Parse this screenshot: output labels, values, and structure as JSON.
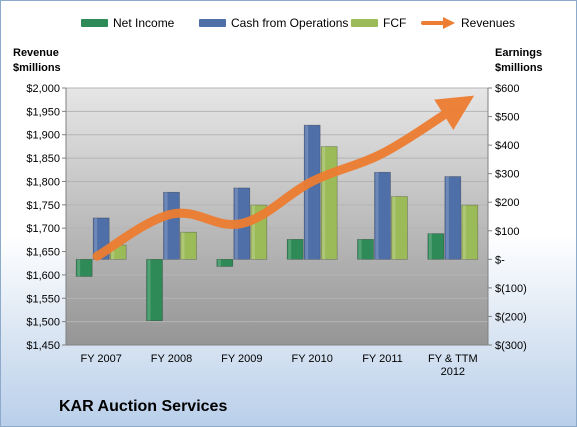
{
  "company": "KAR Auction Services",
  "legend": {
    "net_income": "Net Income",
    "cfo": "Cash from Operations",
    "fcf": "FCF",
    "revenues": "Revenues"
  },
  "left_axis_title": {
    "line1": "Revenue",
    "line2": "$millions"
  },
  "right_axis_title": {
    "line1": "Earnings",
    "line2": "$millions"
  },
  "colors": {
    "net_income": "#2e8b57",
    "cfo": "#4f6fa8",
    "fcf": "#9bbb59",
    "revenues": "#ed7d31",
    "plot_bg_top": "#e6e6e6",
    "plot_bg_bottom": "#959595"
  },
  "chart_data": {
    "type": "bar",
    "categories": [
      "FY 2007",
      "FY 2008",
      "FY 2009",
      "FY 2010",
      "FY 2011",
      "FY & TTM\n2012"
    ],
    "left_axis": {
      "min": 1450,
      "max": 2000,
      "step": 50,
      "ticks": [
        "$1,450",
        "$1,500",
        "$1,550",
        "$1,600",
        "$1,650",
        "$1,700",
        "$1,750",
        "$1,800",
        "$1,850",
        "$1,900",
        "$1,950",
        "$2,000"
      ]
    },
    "right_axis": {
      "min": -300,
      "max": 600,
      "step": 100,
      "ticks": [
        "$(300)",
        "$(200)",
        "$(100)",
        "$-",
        "$100",
        "$200",
        "$300",
        "$400",
        "$500",
        "$600"
      ]
    },
    "series": [
      {
        "name": "Net Income",
        "axis": "right",
        "values": [
          -60,
          -215,
          -25,
          70,
          70,
          90
        ]
      },
      {
        "name": "Cash from Operations",
        "axis": "right",
        "values": [
          145,
          235,
          250,
          470,
          305,
          290
        ]
      },
      {
        "name": "FCF",
        "axis": "right",
        "values": [
          50,
          95,
          190,
          395,
          220,
          190
        ]
      },
      {
        "name": "Revenues",
        "axis": "left",
        "type": "line",
        "values": [
          1640,
          1730,
          1710,
          1800,
          1860,
          1955
        ]
      }
    ],
    "grid": true,
    "legend_position": "top"
  }
}
